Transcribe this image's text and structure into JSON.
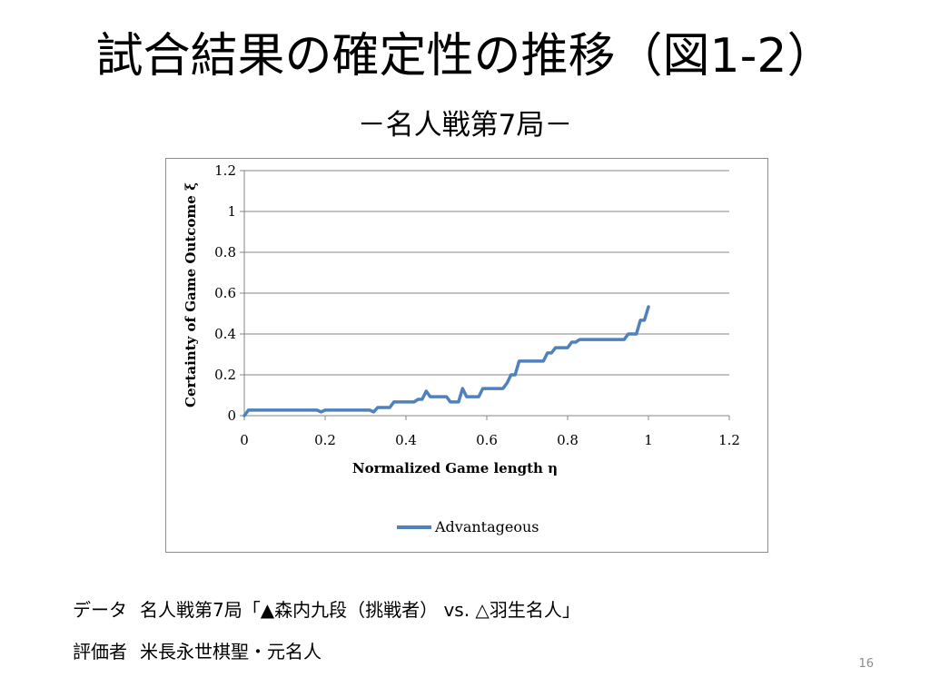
{
  "slide": {
    "title": "試合結果の確定性の推移（図1-2）",
    "subtitle": "－名人戦第7局－",
    "page_number": "16"
  },
  "notes": {
    "data_label": "データ",
    "data_value": "名人戦第7局「▲森内九段（挑戦者） vs. △羽生名人」",
    "evaluator_label": "評価者",
    "evaluator_value": "米長永世棋聖・元名人"
  },
  "colors": {
    "series_line": "#4f81bd",
    "gridline": "#868686",
    "frame_border": "#8c8c8c"
  },
  "chart_data": {
    "type": "line",
    "title": "",
    "xlabel": "Normalized Game length η",
    "ylabel": "Certainty of Game Outcome ξ",
    "xlim": [
      0,
      1.2
    ],
    "ylim": [
      0,
      1.2
    ],
    "x_ticks": [
      "0",
      "0.2",
      "0.4",
      "0.6",
      "0.8",
      "1",
      "1.2"
    ],
    "y_ticks": [
      "0",
      "0.2",
      "0.4",
      "0.6",
      "0.8",
      "1",
      "1.2"
    ],
    "horizontal_grid": true,
    "legend_position": "bottom",
    "series": [
      {
        "name": "Advantageous",
        "x": [
          0,
          0.01,
          0.18,
          0.19,
          0.2,
          0.31,
          0.32,
          0.33,
          0.36,
          0.37,
          0.42,
          0.43,
          0.44,
          0.45,
          0.46,
          0.47,
          0.5,
          0.51,
          0.53,
          0.54,
          0.55,
          0.58,
          0.59,
          0.64,
          0.65,
          0.66,
          0.67,
          0.68,
          0.69,
          0.74,
          0.75,
          0.76,
          0.77,
          0.8,
          0.81,
          0.82,
          0.83,
          0.94,
          0.95,
          0.97,
          0.98,
          0.99,
          1.0
        ],
        "y": [
          0,
          0.027,
          0.027,
          0.018,
          0.027,
          0.027,
          0.018,
          0.04,
          0.04,
          0.067,
          0.067,
          0.08,
          0.08,
          0.12,
          0.093,
          0.093,
          0.093,
          0.067,
          0.067,
          0.133,
          0.093,
          0.093,
          0.133,
          0.133,
          0.16,
          0.2,
          0.2,
          0.267,
          0.267,
          0.267,
          0.307,
          0.307,
          0.333,
          0.333,
          0.36,
          0.36,
          0.373,
          0.373,
          0.4,
          0.4,
          0.467,
          0.467,
          0.533
        ]
      }
    ]
  }
}
